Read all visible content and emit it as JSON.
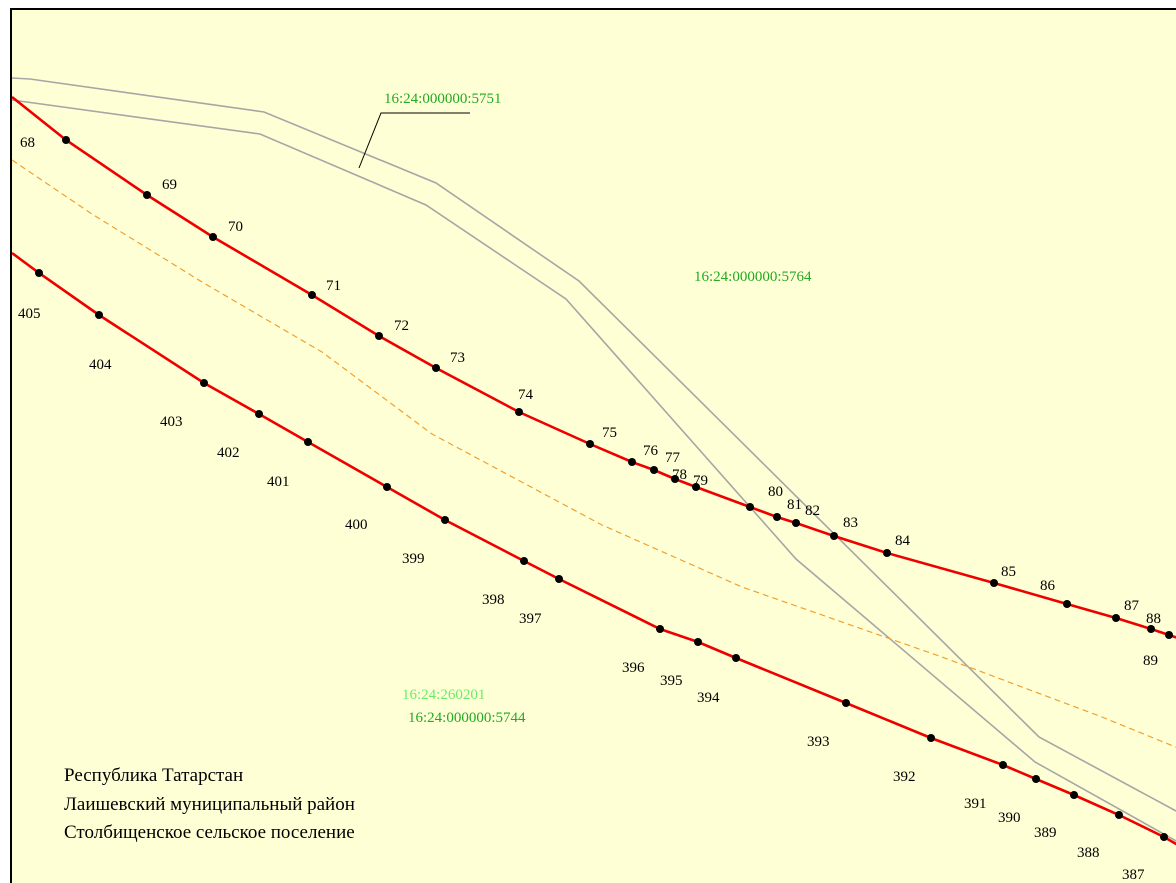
{
  "colors": {
    "background": "#ffffd6",
    "boundary_line": "#ee0000",
    "point": "#000000",
    "parcel_border": "#a6a6a6",
    "dashed_line": "#f0a030",
    "cadastral_label": "#22aa22",
    "quarter_label": "#66ee66"
  },
  "parcels": {
    "top": "16:24:000000:5751",
    "right": "16:24:000000:5764",
    "bottom": "16:24:000000:5744",
    "quarter": "16:24:260201"
  },
  "region": {
    "line1": "Республика Татарстан",
    "line2": "Лаишевский муниципальный район",
    "line3": "Столбищенское сельское поселение"
  },
  "upper_points": [
    "68",
    "69",
    "70",
    "71",
    "72",
    "73",
    "74",
    "75",
    "76",
    "77",
    "78",
    "79",
    "80",
    "81",
    "82",
    "83",
    "84",
    "85",
    "86",
    "87",
    "88",
    "89"
  ],
  "lower_points": [
    "405",
    "404",
    "403",
    "402",
    "401",
    "400",
    "399",
    "398",
    "397",
    "396",
    "395",
    "394",
    "393",
    "392",
    "391",
    "390",
    "389",
    "388",
    "387"
  ]
}
